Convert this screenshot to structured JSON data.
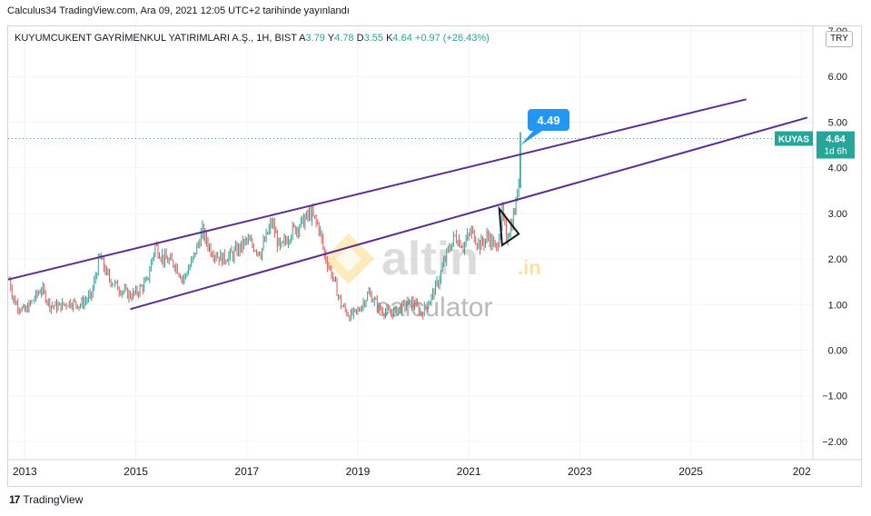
{
  "header": {
    "publish_info": "Calculus34 TradingView.com, Ara 09, 2021 12:05 UTC+2 tarihinde yayınlandı"
  },
  "legend": {
    "symbol_title": "KUYUMCUKENT GAYRİMENKUL YATIRIMLARI A.Ş., 1H, BIST",
    "open_label": "A",
    "open": "3.79",
    "high_label": "Y",
    "high": "4.78",
    "low_label": "D",
    "low": "3.55",
    "close_label": "K",
    "close": "4.64",
    "change": "+0.97 (+26.43%)"
  },
  "currency_button": "TRY",
  "footer": {
    "brand": "TradingView",
    "logo_glyph": "17"
  },
  "watermark": {
    "brand": "altin",
    "suffix": ".in",
    "sub": "calculator"
  },
  "colors": {
    "up": "#26a69a",
    "down": "#ef5350",
    "channel": "#5b2d8e",
    "label_blue": "#2196f3",
    "last_price": "#26a69a",
    "grid": "#f0f3fa"
  },
  "chart_data": {
    "type": "candlestick",
    "symbol": "KUYAS",
    "title": "KUYUMCUKENT GAYRİMENKUL YATIRIMLARI A.Ş., 1H, BIST",
    "x_ticks": [
      "2013",
      "2015",
      "2017",
      "2019",
      "2021",
      "2023",
      "2025",
      "202"
    ],
    "x_tick_positions": [
      2013,
      2015,
      2017,
      2019,
      2021,
      2023,
      2025,
      2027
    ],
    "y_ticks": [
      "7.00",
      "6.00",
      "5.00",
      "4.00",
      "3.00",
      "2.00",
      "1.00",
      "0.00",
      "−1.00",
      "−2.00"
    ],
    "y_tick_values": [
      7,
      6,
      5,
      4,
      3,
      2,
      1,
      0,
      -1,
      -2
    ],
    "xlim": [
      2012.7,
      2027.2
    ],
    "ylim": [
      -2.4,
      7.1
    ],
    "price_series": [
      [
        2012.72,
        1.55
      ],
      [
        2012.8,
        1.1
      ],
      [
        2012.9,
        0.95
      ],
      [
        2013.0,
        0.85
      ],
      [
        2013.15,
        1.1
      ],
      [
        2013.3,
        1.35
      ],
      [
        2013.45,
        1.0
      ],
      [
        2013.6,
        0.95
      ],
      [
        2013.8,
        1.05
      ],
      [
        2014.0,
        1.0
      ],
      [
        2014.2,
        1.2
      ],
      [
        2014.35,
        2.05
      ],
      [
        2014.5,
        1.6
      ],
      [
        2014.7,
        1.35
      ],
      [
        2014.9,
        1.2
      ],
      [
        2015.0,
        1.25
      ],
      [
        2015.2,
        1.5
      ],
      [
        2015.35,
        2.3
      ],
      [
        2015.5,
        2.0
      ],
      [
        2015.7,
        1.9
      ],
      [
        2015.85,
        1.55
      ],
      [
        2016.0,
        1.9
      ],
      [
        2016.2,
        2.6
      ],
      [
        2016.35,
        2.2
      ],
      [
        2016.55,
        2.0
      ],
      [
        2016.75,
        2.1
      ],
      [
        2017.0,
        2.4
      ],
      [
        2017.25,
        2.15
      ],
      [
        2017.45,
        2.8
      ],
      [
        2017.6,
        2.2
      ],
      [
        2017.8,
        2.6
      ],
      [
        2018.0,
        2.8
      ],
      [
        2018.15,
        3.0
      ],
      [
        2018.3,
        2.7
      ],
      [
        2018.4,
        2.1
      ],
      [
        2018.55,
        1.6
      ],
      [
        2018.7,
        1.0
      ],
      [
        2018.85,
        0.75
      ],
      [
        2019.0,
        0.85
      ],
      [
        2019.2,
        1.25
      ],
      [
        2019.4,
        0.9
      ],
      [
        2019.6,
        0.8
      ],
      [
        2019.8,
        0.95
      ],
      [
        2020.0,
        1.05
      ],
      [
        2020.15,
        0.8
      ],
      [
        2020.3,
        1.1
      ],
      [
        2020.45,
        1.5
      ],
      [
        2020.6,
        2.1
      ],
      [
        2020.75,
        2.5
      ],
      [
        2020.9,
        2.3
      ],
      [
        2021.05,
        2.6
      ],
      [
        2021.2,
        2.3
      ],
      [
        2021.35,
        2.5
      ],
      [
        2021.5,
        2.2
      ],
      [
        2021.6,
        3.0
      ],
      [
        2021.68,
        2.5
      ],
      [
        2021.78,
        2.8
      ],
      [
        2021.85,
        3.2
      ],
      [
        2021.9,
        3.8
      ],
      [
        2021.93,
        4.64
      ]
    ],
    "channel_upper": [
      [
        2012.7,
        1.55
      ],
      [
        2026.0,
        5.5
      ]
    ],
    "channel_lower": [
      [
        2014.9,
        0.9
      ],
      [
        2027.1,
        5.1
      ]
    ],
    "triangle": [
      [
        2021.55,
        3.1
      ],
      [
        2021.9,
        2.55
      ],
      [
        2021.6,
        2.3
      ]
    ],
    "price_callout": "4.49",
    "callout_point": [
      2021.93,
      4.49
    ],
    "last_price_label": "4.64",
    "countdown": "1d 6h"
  }
}
